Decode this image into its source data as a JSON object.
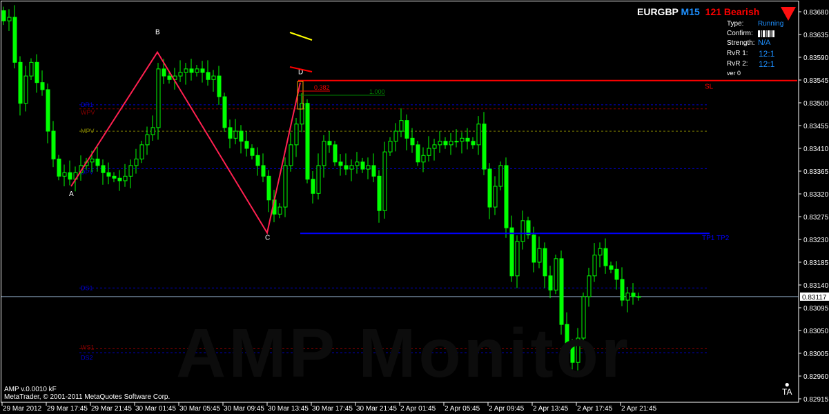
{
  "header": {
    "symbol": "EURGBP",
    "timeframe": "M15",
    "signal": "121 Bearish",
    "signal_icon": "triangle-down-icon"
  },
  "panel": {
    "type_label": "Type:",
    "type_value": "Running",
    "confirm_label": "Confirm:",
    "strength_label": "Strength:",
    "strength_value": "N/A",
    "rvr1_label": "RvR 1:",
    "rvr1_value": "12:1",
    "rvr2_label": "RvR 2:",
    "rvr2_value": "12:1",
    "version": "ver 0"
  },
  "footer": {
    "indicator": "AMP v.0.0010 kF",
    "copyright": "MetaTrader, © 2001-2011 MetaQuotes Software Corp."
  },
  "watermark": "AMP Monitor",
  "colors": {
    "bull": "#00ff00",
    "pattern": "#ff2050",
    "sl": "#ff0000",
    "tp": "#0000ff",
    "price_line": "#8da6c0"
  },
  "chart_data": {
    "type": "candlestick",
    "ylim": [
      0.82915,
      0.8368
    ],
    "y_ticks": [
      "0.83680",
      "0.83635",
      "0.83590",
      "0.83545",
      "0.83500",
      "0.83455",
      "0.83410",
      "0.83365",
      "0.83320",
      "0.83275",
      "0.83230",
      "0.83185",
      "0.83140",
      "0.83095",
      "0.83050",
      "0.83005",
      "0.82960",
      "0.82915"
    ],
    "x_ticks": [
      "29 Mar 2012",
      "29 Mar 17:45",
      "29 Mar 21:45",
      "30 Mar 01:45",
      "30 Mar 05:45",
      "30 Mar 09:45",
      "30 Mar 13:45",
      "30 Mar 17:45",
      "30 Mar 21:45",
      "2 Apr 01:45",
      "2 Apr 05:45",
      "2 Apr 09:45",
      "2 Apr 13:45",
      "2 Apr 17:45",
      "2 Apr 21:45"
    ],
    "current_price": "0.83117",
    "closes": [
      0.83662,
      0.83669,
      0.8358,
      0.83499,
      0.83553,
      0.8358,
      0.8354,
      0.83526,
      0.83444,
      0.83389,
      0.83355,
      0.83362,
      0.83349,
      0.83362,
      0.83376,
      0.83383,
      0.83389,
      0.83376,
      0.83362,
      0.83355,
      0.83351,
      0.83346,
      0.83355,
      0.83376,
      0.83389,
      0.83417,
      0.83437,
      0.83451,
      0.83567,
      0.83553,
      0.83546,
      0.83553,
      0.8356,
      0.83567,
      0.8356,
      0.83567,
      0.8356,
      0.83546,
      0.83553,
      0.83512,
      0.83451,
      0.8343,
      0.83444,
      0.83424,
      0.8341,
      0.83396,
      0.83376,
      0.83355,
      0.83308,
      0.8328,
      0.83294,
      0.83376,
      0.83417,
      0.83458,
      0.83499,
      0.83349,
      0.83321,
      0.83376,
      0.83424,
      0.83417,
      0.83383,
      0.83376,
      0.83369,
      0.83376,
      0.83383,
      0.83369,
      0.83376,
      0.83355,
      0.83287,
      0.83403,
      0.83424,
      0.83444,
      0.83465,
      0.8343,
      0.83417,
      0.83383,
      0.83396,
      0.8341,
      0.83417,
      0.83424,
      0.83417,
      0.83424,
      0.83424,
      0.8343,
      0.83424,
      0.83417,
      0.83458,
      0.83369,
      0.83294,
      0.83335,
      0.83376,
      0.83253,
      0.83158,
      0.83226,
      0.83267,
      0.83239,
      0.83185,
      0.83212,
      0.83158,
      0.8313,
      0.83192,
      0.83062,
      0.83021,
      0.82987,
      0.83035,
      0.83117,
      0.83158,
      0.83199,
      0.83212,
      0.83178,
      0.83171,
      0.83151,
      0.8311,
      0.83124,
      0.83117,
      0.83117
    ],
    "levels": [
      {
        "name": "DR1",
        "price": 0.83496,
        "color": "#0000cc"
      },
      {
        "name": "WPV",
        "price": 0.83488,
        "color": "#8b0000"
      },
      {
        "name": "MPV",
        "price": 0.83444,
        "color": "#808000"
      },
      {
        "name": "DPV",
        "price": 0.8337,
        "color": "#0000cc"
      },
      {
        "name": "DS1",
        "price": 0.83134,
        "color": "#0000cc"
      },
      {
        "name": "WS1",
        "price": 0.83014,
        "color": "#8b0000"
      },
      {
        "name": "DS2",
        "price": 0.83006,
        "color": "#0000cc"
      }
    ],
    "sl": {
      "label": "SL",
      "price": 0.83544
    },
    "tp": {
      "label": "TP1 TP2",
      "price": 0.83242
    },
    "pattern_points": [
      {
        "label": "A",
        "price": 0.83335
      },
      {
        "label": "B",
        "price": 0.836
      },
      {
        "label": "C",
        "price": 0.83243
      },
      {
        "label": "D",
        "price": 0.8354
      }
    ],
    "fib": [
      {
        "label": "0.382",
        "color": "#ff0000"
      },
      {
        "label": "1.000",
        "color": "#008000"
      }
    ]
  }
}
